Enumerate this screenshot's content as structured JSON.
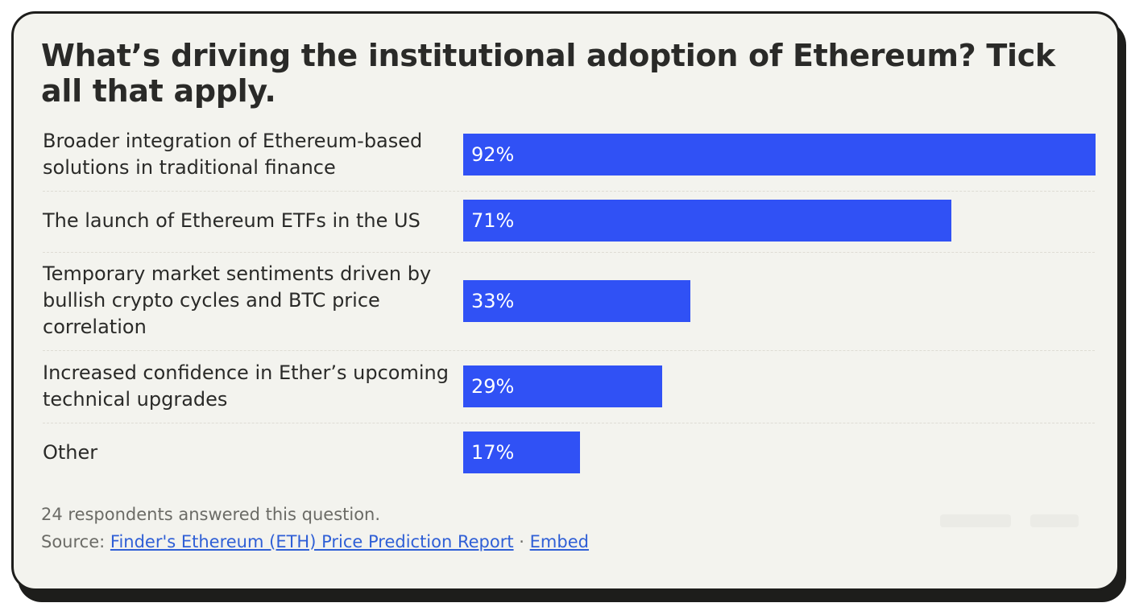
{
  "chart_data": {
    "type": "bar",
    "orientation": "horizontal",
    "title": "What’s driving the institutional adoption of Ethereum? Tick all that apply.",
    "categories": [
      "Broader integration of Ethereum-based solutions in traditional finance",
      "The launch of Ethereum ETFs in the US",
      "Temporary market sentiments driven by bullish crypto cycles and BTC price correlation",
      "Increased confidence in Ether’s upcoming technical upgrades",
      "Other"
    ],
    "values": [
      92,
      71,
      33,
      29,
      17
    ],
    "value_labels": [
      "92%",
      "71%",
      "33%",
      "29%",
      "17%"
    ],
    "xlim": [
      0,
      92
    ],
    "xlabel": "",
    "ylabel": "",
    "grid": false,
    "legend": "none",
    "bar_color": "#3051f5"
  },
  "footer": {
    "respondents": "24 respondents answered this question.",
    "source_prefix": "Source:",
    "source_link": "Finder's Ethereum (ETH) Price Prediction Report",
    "separator": "·",
    "embed_link": "Embed"
  }
}
